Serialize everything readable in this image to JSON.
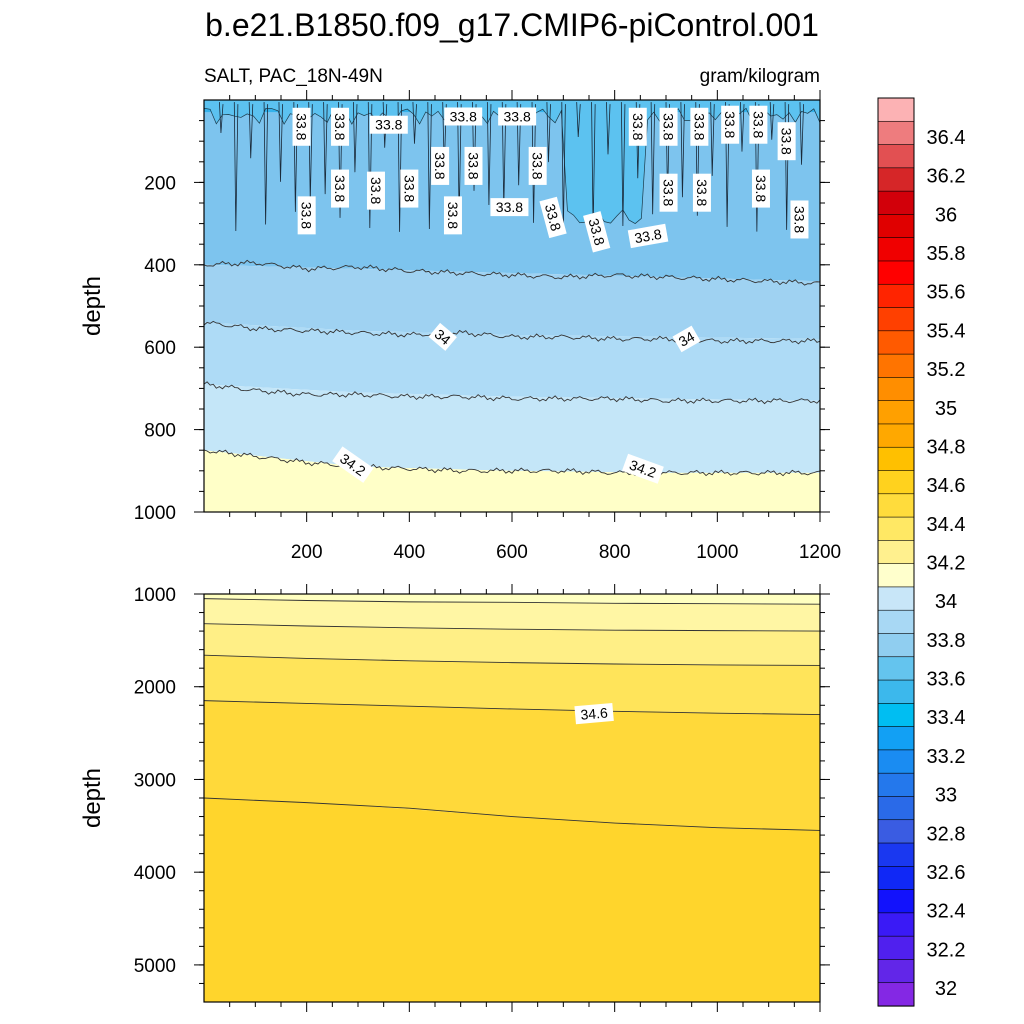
{
  "title": "b.e21.B1850.f09_g17.CMIP6-piControl.001",
  "subtitle_left": "SALT, PAC_18N-49N",
  "subtitle_right": "gram/kilogram",
  "chart_data": [
    {
      "type": "contour",
      "panel": "upper",
      "variable": "SALT",
      "region": "PAC_18N-49N",
      "units": "gram/kilogram",
      "xlabel": "",
      "ylabel": "depth",
      "xlim": [
        0,
        1200
      ],
      "ylim": [
        1000,
        0
      ],
      "x_ticks": [
        "200",
        "400",
        "600",
        "800",
        "1000",
        "1200"
      ],
      "y_ticks": [
        "200",
        "400",
        "600",
        "800",
        "1000"
      ],
      "fill_bands": [
        {
          "top": [
            [
              0,
              0
            ],
            [
              1200,
              0
            ]
          ],
          "bottom": [
            [
              0,
              30
            ],
            [
              1200,
              30
            ]
          ],
          "color": "#35b2eb"
        },
        {
          "top": [
            [
              0,
              30
            ],
            [
              1200,
              30
            ]
          ],
          "bottom": [
            [
              0,
              400
            ],
            [
              300,
              410
            ],
            [
              600,
              420
            ],
            [
              900,
              430
            ],
            [
              1200,
              440
            ]
          ],
          "color": "#7dc4ee"
        },
        {
          "top": [
            [
              0,
              400
            ],
            [
              300,
              410
            ],
            [
              600,
              420
            ],
            [
              900,
              430
            ],
            [
              1200,
              440
            ]
          ],
          "bottom": [
            [
              0,
              540
            ],
            [
              300,
              560
            ],
            [
              600,
              570
            ],
            [
              900,
              575
            ],
            [
              1200,
              580
            ]
          ],
          "color": "#9fd2f2"
        },
        {
          "top": [
            [
              0,
              540
            ],
            [
              300,
              560
            ],
            [
              600,
              570
            ],
            [
              900,
              575
            ],
            [
              1200,
              580
            ]
          ],
          "bottom": [
            [
              0,
              690
            ],
            [
              300,
              710
            ],
            [
              600,
              720
            ],
            [
              900,
              725
            ],
            [
              1200,
              730
            ]
          ],
          "color": "#aedbf6"
        },
        {
          "top": [
            [
              0,
              690
            ],
            [
              300,
              710
            ],
            [
              600,
              720
            ],
            [
              900,
              725
            ],
            [
              1200,
              730
            ]
          ],
          "bottom": [
            [
              0,
              850
            ],
            [
              300,
              890
            ],
            [
              600,
              900
            ],
            [
              900,
              905
            ],
            [
              1200,
              905
            ]
          ],
          "color": "#c4e6f8"
        },
        {
          "top": [
            [
              0,
              850
            ],
            [
              300,
              890
            ],
            [
              600,
              900
            ],
            [
              900,
              905
            ],
            [
              1200,
              905
            ]
          ],
          "bottom": [
            [
              0,
              1000
            ],
            [
              1200,
              1000
            ]
          ],
          "color": "#ffffc8"
        }
      ],
      "contour_lines": [
        [
          [
            0,
            400
          ],
          [
            100,
            395
          ],
          [
            200,
            410
          ],
          [
            300,
            405
          ],
          [
            400,
            415
          ],
          [
            500,
            420
          ],
          [
            600,
            425
          ],
          [
            700,
            430
          ],
          [
            800,
            425
          ],
          [
            900,
            430
          ],
          [
            1000,
            435
          ],
          [
            1100,
            440
          ],
          [
            1200,
            445
          ]
        ],
        [
          [
            0,
            540
          ],
          [
            100,
            555
          ],
          [
            200,
            560
          ],
          [
            300,
            565
          ],
          [
            400,
            570
          ],
          [
            500,
            565
          ],
          [
            600,
            575
          ],
          [
            700,
            575
          ],
          [
            800,
            580
          ],
          [
            900,
            580
          ],
          [
            1000,
            585
          ],
          [
            1100,
            585
          ],
          [
            1200,
            585
          ]
        ],
        [
          [
            0,
            690
          ],
          [
            100,
            705
          ],
          [
            200,
            715
          ],
          [
            300,
            715
          ],
          [
            400,
            720
          ],
          [
            500,
            720
          ],
          [
            600,
            725
          ],
          [
            700,
            725
          ],
          [
            800,
            725
          ],
          [
            900,
            730
          ],
          [
            1000,
            730
          ],
          [
            1100,
            730
          ],
          [
            1200,
            730
          ]
        ],
        [
          [
            0,
            850
          ],
          [
            100,
            865
          ],
          [
            200,
            880
          ],
          [
            300,
            890
          ],
          [
            400,
            895
          ],
          [
            500,
            900
          ],
          [
            600,
            900
          ],
          [
            700,
            900
          ],
          [
            800,
            905
          ],
          [
            900,
            905
          ],
          [
            1000,
            905
          ],
          [
            1100,
            905
          ],
          [
            1200,
            905
          ]
        ]
      ],
      "contour_labels": [
        {
          "text": "33.8",
          "x": 190,
          "y": 65,
          "angle": 90
        },
        {
          "text": "33.8",
          "x": 265,
          "y": 65,
          "angle": 90
        },
        {
          "text": "33.8",
          "x": 360,
          "y": 60,
          "angle": 0
        },
        {
          "text": "33.8",
          "x": 505,
          "y": 40,
          "angle": 0
        },
        {
          "text": "33.8",
          "x": 610,
          "y": 40,
          "angle": 0
        },
        {
          "text": "33.8",
          "x": 845,
          "y": 65,
          "angle": 90
        },
        {
          "text": "33.8",
          "x": 905,
          "y": 65,
          "angle": 90
        },
        {
          "text": "33.8",
          "x": 965,
          "y": 65,
          "angle": 90
        },
        {
          "text": "33.8",
          "x": 1025,
          "y": 60,
          "angle": 90
        },
        {
          "text": "33.8",
          "x": 1080,
          "y": 60,
          "angle": 90
        },
        {
          "text": "33.8",
          "x": 1135,
          "y": 100,
          "angle": 90
        },
        {
          "text": "33.8",
          "x": 460,
          "y": 160,
          "angle": 90
        },
        {
          "text": "33.8",
          "x": 525,
          "y": 160,
          "angle": 90
        },
        {
          "text": "33.8",
          "x": 650,
          "y": 160,
          "angle": 90
        },
        {
          "text": "33.8",
          "x": 265,
          "y": 215,
          "angle": 90
        },
        {
          "text": "33.8",
          "x": 335,
          "y": 220,
          "angle": 90
        },
        {
          "text": "33.8",
          "x": 400,
          "y": 215,
          "angle": 90
        },
        {
          "text": "33.8",
          "x": 905,
          "y": 225,
          "angle": 90
        },
        {
          "text": "33.8",
          "x": 970,
          "y": 225,
          "angle": 90
        },
        {
          "text": "33.8",
          "x": 1085,
          "y": 215,
          "angle": 90
        },
        {
          "text": "33.8",
          "x": 200,
          "y": 280,
          "angle": 90
        },
        {
          "text": "33.8",
          "x": 485,
          "y": 280,
          "angle": 90
        },
        {
          "text": "33.8",
          "x": 595,
          "y": 260,
          "angle": 0
        },
        {
          "text": "33.8",
          "x": 680,
          "y": 285,
          "angle": 75
        },
        {
          "text": "33.8",
          "x": 765,
          "y": 320,
          "angle": 75
        },
        {
          "text": "33.8",
          "x": 865,
          "y": 330,
          "angle": -10
        },
        {
          "text": "33.8",
          "x": 1160,
          "y": 290,
          "angle": 90
        },
        {
          "text": "34",
          "x": 465,
          "y": 575,
          "angle": 40
        },
        {
          "text": "34",
          "x": 940,
          "y": 580,
          "angle": -30
        },
        {
          "text": "34.2",
          "x": 290,
          "y": 885,
          "angle": 35
        },
        {
          "text": "34.2",
          "x": 855,
          "y": 895,
          "angle": 20
        }
      ]
    },
    {
      "type": "contour",
      "panel": "lower",
      "variable": "SALT",
      "region": "PAC_18N-49N",
      "units": "gram/kilogram",
      "xlabel": "",
      "ylabel": "depth",
      "xlim": [
        0,
        1200
      ],
      "ylim": [
        5400,
        1000
      ],
      "x_ticks": [
        "",
        "",
        "",
        "",
        "",
        ""
      ],
      "y_ticks": [
        "1000",
        "2000",
        "3000",
        "4000",
        "5000"
      ],
      "fill_bands": [
        {
          "top": [
            [
              0,
              1000
            ],
            [
              1200,
              1000
            ]
          ],
          "bottom": [
            [
              0,
              1050
            ],
            [
              600,
              1090
            ],
            [
              1200,
              1110
            ]
          ],
          "color": "#ffffc0"
        },
        {
          "top": [
            [
              0,
              1050
            ],
            [
              600,
              1090
            ],
            [
              1200,
              1110
            ]
          ],
          "bottom": [
            [
              0,
              1320
            ],
            [
              600,
              1380
            ],
            [
              1200,
              1400
            ]
          ],
          "color": "#fff6a4"
        },
        {
          "top": [
            [
              0,
              1320
            ],
            [
              600,
              1380
            ],
            [
              1200,
              1400
            ]
          ],
          "bottom": [
            [
              0,
              1660
            ],
            [
              600,
              1740
            ],
            [
              1200,
              1770
            ]
          ],
          "color": "#ffef86"
        },
        {
          "top": [
            [
              0,
              1660
            ],
            [
              600,
              1740
            ],
            [
              1200,
              1770
            ]
          ],
          "bottom": [
            [
              0,
              2150
            ],
            [
              600,
              2240
            ],
            [
              1200,
              2300
            ]
          ],
          "color": "#ffe45a"
        },
        {
          "top": [
            [
              0,
              2150
            ],
            [
              600,
              2240
            ],
            [
              1200,
              2300
            ]
          ],
          "bottom": [
            [
              0,
              3200
            ],
            [
              300,
              3280
            ],
            [
              600,
              3400
            ],
            [
              900,
              3500
            ],
            [
              1200,
              3550
            ]
          ],
          "color": "#ffd93a"
        },
        {
          "top": [
            [
              0,
              3200
            ],
            [
              300,
              3280
            ],
            [
              600,
              3400
            ],
            [
              900,
              3500
            ],
            [
              1200,
              3550
            ]
          ],
          "bottom": [
            [
              0,
              5400
            ],
            [
              1200,
              5400
            ]
          ],
          "color": "#ffd52c"
        }
      ],
      "contour_lines": [
        [
          [
            0,
            1050
          ],
          [
            200,
            1070
          ],
          [
            400,
            1085
          ],
          [
            600,
            1090
          ],
          [
            800,
            1100
          ],
          [
            1000,
            1105
          ],
          [
            1200,
            1110
          ]
        ],
        [
          [
            0,
            1320
          ],
          [
            200,
            1345
          ],
          [
            400,
            1365
          ],
          [
            600,
            1380
          ],
          [
            800,
            1390
          ],
          [
            1000,
            1395
          ],
          [
            1200,
            1400
          ]
        ],
        [
          [
            0,
            1660
          ],
          [
            200,
            1695
          ],
          [
            400,
            1720
          ],
          [
            600,
            1740
          ],
          [
            800,
            1755
          ],
          [
            1000,
            1765
          ],
          [
            1200,
            1770
          ]
        ],
        [
          [
            0,
            2150
          ],
          [
            200,
            2180
          ],
          [
            400,
            2210
          ],
          [
            600,
            2240
          ],
          [
            800,
            2265
          ],
          [
            1000,
            2285
          ],
          [
            1200,
            2300
          ]
        ],
        [
          [
            0,
            3200
          ],
          [
            200,
            3250
          ],
          [
            400,
            3310
          ],
          [
            600,
            3400
          ],
          [
            800,
            3470
          ],
          [
            1000,
            3520
          ],
          [
            1200,
            3550
          ]
        ]
      ],
      "contour_labels": [
        {
          "text": "34.6",
          "x": 760,
          "y": 2290,
          "angle": -5
        }
      ]
    }
  ],
  "colorbar": {
    "labels": [
      "36.4",
      "36.2",
      "36",
      "35.8",
      "35.6",
      "35.4",
      "35.2",
      "35",
      "34.8",
      "34.6",
      "34.4",
      "34.2",
      "34",
      "33.8",
      "33.6",
      "33.4",
      "33.2",
      "33",
      "32.8",
      "32.6",
      "32.4",
      "32.2",
      "32"
    ],
    "colors": [
      "#fcb2b4",
      "#ee7c7e",
      "#e25052",
      "#d62628",
      "#d2000a",
      "#e00000",
      "#f00000",
      "#ff0000",
      "#ff2400",
      "#ff4000",
      "#ff5a00",
      "#ff7400",
      "#ff8e00",
      "#ffa000",
      "#ffa800",
      "#ffc000",
      "#ffd21e",
      "#ffdc3c",
      "#ffe864",
      "#fff08e",
      "#ffffcc",
      "#c8e6f8",
      "#a8d8f4",
      "#90cef0",
      "#64c4ee",
      "#3cb8ec",
      "#00bef2",
      "#12a0f4",
      "#1a8cf2",
      "#2478ec",
      "#2a6ae8",
      "#3a5ce2",
      "#1a38f0",
      "#1028f6",
      "#1212fc",
      "#3a1af6",
      "#5020ee",
      "#6226e8",
      "#8428e4"
    ]
  }
}
